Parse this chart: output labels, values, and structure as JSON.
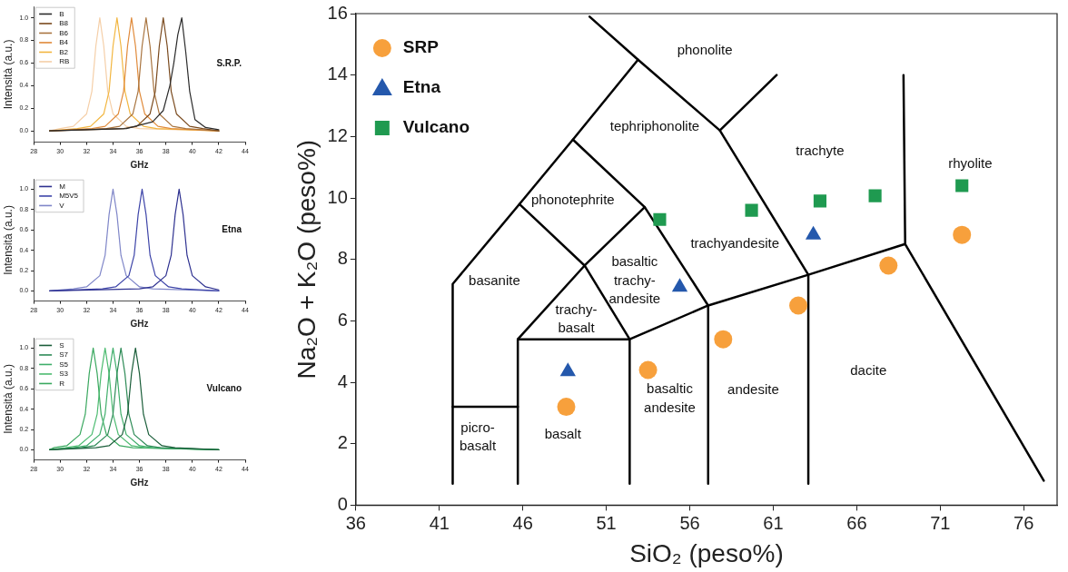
{
  "chart_data": [
    {
      "type": "line",
      "xlabel": "GHz",
      "ylabel": "Intensità (a.u.)",
      "annotations": [
        "S.R.P."
      ],
      "xlim": [
        28,
        44
      ],
      "xticks": [
        28,
        30,
        32,
        34,
        36,
        38,
        40,
        42,
        44
      ],
      "ylim": [
        -0.1,
        1.1
      ],
      "yticks": [
        {
          "value": 0,
          "label": "0.0"
        },
        {
          "value": 0.2,
          "label": "0.2"
        },
        {
          "value": 0.4,
          "label": "0.4"
        },
        {
          "value": 0.6,
          "label": "0.6"
        },
        {
          "value": 0.8,
          "label": "0.8"
        },
        {
          "value": 1,
          "label": "1.0"
        }
      ],
      "grid": false,
      "legend": "top left",
      "marker": "none",
      "line_style": "solid",
      "series": [
        {
          "name": "B",
          "color": "#2b2b2b",
          "x": [
            29.2,
            35,
            37,
            37.8,
            38.3,
            38.6,
            38.9,
            39.2,
            39.5,
            39.8,
            40.2,
            41,
            42
          ],
          "values": [
            0,
            0.02,
            0.08,
            0.18,
            0.4,
            0.6,
            0.85,
            1,
            0.7,
            0.35,
            0.1,
            0.03,
            0.01
          ]
        },
        {
          "name": "B8",
          "color": "#7a4a1e",
          "x": [
            29.2,
            34.8,
            35.8,
            36.8,
            37.2,
            37.5,
            37.8,
            38.1,
            38.4,
            38.8,
            39.8,
            40.8,
            42
          ],
          "values": [
            0,
            0.02,
            0.04,
            0.15,
            0.35,
            0.75,
            1,
            0.75,
            0.35,
            0.15,
            0.04,
            0.02,
            0
          ]
        },
        {
          "name": "B6",
          "color": "#a8743f",
          "x": [
            29.2,
            33.5,
            34.5,
            35.5,
            35.9,
            36.2,
            36.5,
            36.8,
            37.1,
            37.5,
            38.5,
            39.5,
            42
          ],
          "values": [
            0,
            0.02,
            0.04,
            0.15,
            0.35,
            0.75,
            1,
            0.75,
            0.35,
            0.15,
            0.04,
            0.02,
            0
          ]
        },
        {
          "name": "B4",
          "color": "#e08a3a",
          "x": [
            29.2,
            32.4,
            33.4,
            34.4,
            34.8,
            35.1,
            35.4,
            35.7,
            36,
            36.4,
            37.4,
            38.4,
            42
          ],
          "values": [
            0,
            0.02,
            0.04,
            0.15,
            0.35,
            0.75,
            1,
            0.75,
            0.35,
            0.15,
            0.04,
            0.02,
            0
          ]
        },
        {
          "name": "B2",
          "color": "#f2b640",
          "x": [
            29.2,
            31.3,
            32.3,
            33.3,
            33.7,
            34,
            34.3,
            34.6,
            34.9,
            35.3,
            36.3,
            37.3,
            42
          ],
          "values": [
            0,
            0.02,
            0.04,
            0.15,
            0.35,
            0.75,
            1,
            0.75,
            0.35,
            0.15,
            0.04,
            0.02,
            0
          ]
        },
        {
          "name": "RB",
          "color": "#f5cfa8",
          "x": [
            29.2,
            30,
            31,
            32,
            32.4,
            32.7,
            33,
            33.3,
            33.6,
            34,
            35,
            36,
            42
          ],
          "values": [
            0,
            0.02,
            0.04,
            0.15,
            0.35,
            0.75,
            1,
            0.75,
            0.35,
            0.15,
            0.04,
            0.02,
            0
          ]
        }
      ]
    },
    {
      "type": "line",
      "xlabel": "GHz",
      "ylabel": "Intensità (a.u.)",
      "annotations": [
        "Etna"
      ],
      "xlim": [
        28,
        44
      ],
      "xticks": [
        28,
        30,
        32,
        34,
        36,
        38,
        40,
        42,
        44
      ],
      "ylim": [
        -0.1,
        1.1
      ],
      "yticks": [
        {
          "value": 0,
          "label": "0.0"
        },
        {
          "value": 0.2,
          "label": "0.2"
        },
        {
          "value": 0.4,
          "label": "0.4"
        },
        {
          "value": 0.6,
          "label": "0.6"
        },
        {
          "value": 0.8,
          "label": "0.8"
        },
        {
          "value": 1,
          "label": "1.0"
        }
      ],
      "grid": false,
      "legend": "top left",
      "marker": "none",
      "line_style": "solid",
      "series": [
        {
          "name": "M",
          "color": "#2e3190",
          "x": [
            29.2,
            36,
            37,
            38,
            38.4,
            38.7,
            39,
            39.3,
            39.6,
            40,
            41,
            42
          ],
          "values": [
            0,
            0.02,
            0.04,
            0.15,
            0.35,
            0.75,
            1,
            0.75,
            0.35,
            0.15,
            0.04,
            0.01
          ]
        },
        {
          "name": "M5V5",
          "color": "#3d44a8",
          "x": [
            29.2,
            33.2,
            34.2,
            35.2,
            35.6,
            35.9,
            36.2,
            36.5,
            36.8,
            37.2,
            38.2,
            39.2,
            42
          ],
          "values": [
            0,
            0.02,
            0.04,
            0.15,
            0.35,
            0.75,
            1,
            0.75,
            0.35,
            0.15,
            0.04,
            0.02,
            0
          ]
        },
        {
          "name": "V",
          "color": "#7f86c8",
          "x": [
            29.2,
            31,
            32,
            33,
            33.4,
            33.7,
            34,
            34.3,
            34.6,
            35,
            36,
            37,
            42
          ],
          "values": [
            0,
            0.02,
            0.04,
            0.15,
            0.35,
            0.75,
            1,
            0.75,
            0.35,
            0.15,
            0.04,
            0.02,
            0
          ]
        }
      ]
    },
    {
      "type": "line",
      "xlabel": "GHz",
      "ylabel": "Intensità (a.u.)",
      "annotations": [
        "Vulcano"
      ],
      "xlim": [
        28,
        44
      ],
      "xticks": [
        28,
        30,
        32,
        34,
        36,
        38,
        40,
        42,
        44
      ],
      "ylim": [
        -0.1,
        1.1
      ],
      "yticks": [
        {
          "value": 0,
          "label": "0.0"
        },
        {
          "value": 0.2,
          "label": "0.2"
        },
        {
          "value": 0.4,
          "label": "0.4"
        },
        {
          "value": 0.6,
          "label": "0.6"
        },
        {
          "value": 0.8,
          "label": "0.8"
        },
        {
          "value": 1,
          "label": "1.0"
        }
      ],
      "grid": false,
      "legend": "top left",
      "marker": "none",
      "line_style": "solid",
      "series": [
        {
          "name": "S",
          "color": "#1b5e3a",
          "x": [
            29.2,
            32.7,
            33.7,
            34.7,
            35.1,
            35.4,
            35.7,
            36,
            36.3,
            36.7,
            37.7,
            38.7,
            42
          ],
          "values": [
            0,
            0.02,
            0.04,
            0.15,
            0.35,
            0.75,
            1,
            0.75,
            0.35,
            0.15,
            0.04,
            0.02,
            0
          ]
        },
        {
          "name": "S7",
          "color": "#2e8b57",
          "x": [
            29.2,
            31.6,
            32.6,
            33.6,
            34,
            34.3,
            34.6,
            34.9,
            35.2,
            35.6,
            36.6,
            37.6,
            42
          ],
          "values": [
            0,
            0.02,
            0.04,
            0.15,
            0.35,
            0.75,
            1,
            0.75,
            0.35,
            0.15,
            0.04,
            0.02,
            0
          ]
        },
        {
          "name": "S5",
          "color": "#3fae6a",
          "x": [
            29.2,
            31,
            32,
            33,
            33.4,
            33.7,
            34,
            34.3,
            34.6,
            35,
            36,
            37,
            42
          ],
          "values": [
            0,
            0.02,
            0.04,
            0.15,
            0.35,
            0.75,
            1,
            0.75,
            0.35,
            0.15,
            0.04,
            0.02,
            0
          ]
        },
        {
          "name": "S3",
          "color": "#4cbb70",
          "x": [
            29.2,
            30.4,
            31.4,
            32.4,
            32.8,
            33.1,
            33.4,
            33.7,
            34,
            34.4,
            35.4,
            36.4,
            42
          ],
          "values": [
            0,
            0.02,
            0.04,
            0.15,
            0.35,
            0.75,
            1,
            0.75,
            0.35,
            0.15,
            0.04,
            0.02,
            0
          ]
        },
        {
          "name": "R",
          "color": "#3aa85f",
          "x": [
            29.2,
            29.5,
            30.5,
            31.5,
            31.9,
            32.2,
            32.5,
            32.8,
            33.1,
            33.5,
            34.5,
            35.5,
            42
          ],
          "values": [
            0,
            0.02,
            0.04,
            0.15,
            0.35,
            0.75,
            1,
            0.75,
            0.35,
            0.15,
            0.04,
            0.02,
            0
          ]
        }
      ]
    },
    {
      "type": "scatter",
      "xlabel": "SiO₂ (peso%)",
      "ylabel": "Na₂O + K₂O (peso%)",
      "xlim": [
        36,
        78
      ],
      "xticks": [
        36,
        41,
        46,
        51,
        56,
        61,
        66,
        71,
        76
      ],
      "ylim": [
        0,
        16
      ],
      "yticks": [
        0,
        2,
        4,
        6,
        8,
        10,
        12,
        14,
        16
      ],
      "grid": false,
      "legend": "top left",
      "annotations": [
        "phonolite",
        "tephriphonolite",
        "trachyte",
        "rhyolite",
        "phonotephrite",
        "trachyandesite",
        "basanite",
        "basaltic\ntrachy-\nandesite",
        "trachy-\nbasalt",
        "basaltic\nandesite",
        "andesite",
        "dacite",
        "picro-\nbasalt",
        "basalt"
      ],
      "series": [
        {
          "type": "line",
          "color": "#000000",
          "marker": "none",
          "x": [
            41.8,
            41.8,
            45.8,
            49.0,
            52.9,
            50.0
          ],
          "values": [
            0.7,
            7.2,
            9.8,
            11.9,
            14.5,
            15.9
          ]
        },
        {
          "type": "line",
          "color": "#000000",
          "marker": "none",
          "x": [
            52.9,
            57.8,
            61.2
          ],
          "values": [
            14.5,
            12.2,
            14.0
          ]
        },
        {
          "type": "line",
          "color": "#000000",
          "marker": "none",
          "x": [
            57.8,
            63.1,
            63.1
          ],
          "values": [
            12.2,
            7.5,
            0.7
          ]
        },
        {
          "type": "line",
          "color": "#000000",
          "marker": "none",
          "x": [
            49.0,
            53.3,
            57.1,
            57.1
          ],
          "values": [
            11.9,
            9.7,
            6.5,
            0.7
          ]
        },
        {
          "type": "line",
          "color": "#000000",
          "marker": "none",
          "x": [
            45.8,
            49.7,
            53.3
          ],
          "values": [
            9.8,
            7.8,
            9.7
          ]
        },
        {
          "type": "line",
          "color": "#000000",
          "marker": "none",
          "x": [
            45.7,
            45.7,
            49.7,
            52.4,
            52.4
          ],
          "values": [
            0.7,
            5.4,
            7.8,
            5.4,
            0.7
          ]
        },
        {
          "type": "line",
          "color": "#000000",
          "marker": "none",
          "x": [
            45.7,
            52.4,
            57.1,
            63.1,
            68.9,
            77.2
          ],
          "values": [
            5.4,
            5.4,
            6.5,
            7.5,
            8.5,
            0.8
          ]
        },
        {
          "type": "line",
          "color": "#000000",
          "marker": "none",
          "x": [
            41.8,
            45.7
          ],
          "values": [
            3.2,
            3.2
          ]
        },
        {
          "type": "line",
          "color": "#000000",
          "marker": "none",
          "x": [
            68.8,
            68.9
          ],
          "values": [
            14.0,
            8.5
          ]
        },
        {
          "name": "SRP",
          "type": "scatter",
          "marker": "circle",
          "color": "#f7a03c",
          "x": [
            48.6,
            53.5,
            58.0,
            62.5,
            67.9,
            72.3
          ],
          "values": [
            3.2,
            4.4,
            5.4,
            6.5,
            7.8,
            8.8
          ]
        },
        {
          "name": "Etna",
          "type": "scatter",
          "marker": "triangle",
          "color": "#2458ac",
          "x": [
            48.7,
            55.4,
            63.4
          ],
          "values": [
            4.35,
            7.1,
            8.8
          ]
        },
        {
          "name": "Vulcano",
          "type": "scatter",
          "marker": "square",
          "color": "#1f9a50",
          "x": [
            54.2,
            59.7,
            63.8,
            67.1,
            72.3
          ],
          "values": [
            9.3,
            9.6,
            9.9,
            10.07,
            10.4
          ]
        }
      ]
    }
  ]
}
